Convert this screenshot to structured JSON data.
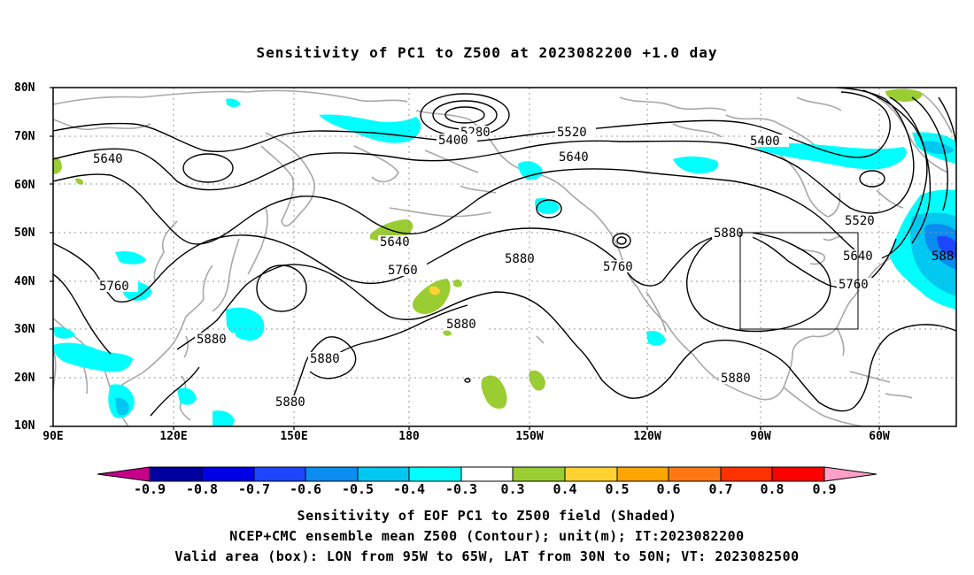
{
  "title": "Sensitivity of PC1 to Z500 at 2023082200 +1.0 day",
  "axes": {
    "lat_labels": [
      "80N",
      "70N",
      "60N",
      "50N",
      "40N",
      "30N",
      "20N",
      "10N"
    ],
    "lon_labels": [
      "90E",
      "120E",
      "150E",
      "180",
      "150W",
      "120W",
      "90W",
      "60W"
    ]
  },
  "contour_labels": [
    "5280",
    "5400",
    "5520",
    "5640",
    "5400",
    "5640",
    "5520",
    "5640",
    "5760",
    "5880",
    "5880",
    "5760",
    "5640",
    "5760",
    "5760",
    "5880",
    "5880",
    "5880",
    "5880",
    "5880",
    "588"
  ],
  "colorbar": {
    "ticks": [
      "-0.9",
      "-0.8",
      "-0.7",
      "-0.6",
      "-0.5",
      "-0.4",
      "-0.3",
      "0.3",
      "0.4",
      "0.5",
      "0.6",
      "0.7",
      "0.8",
      "0.9"
    ],
    "colors": [
      "#c8008c",
      "#0000a0",
      "#0000e6",
      "#1e46ff",
      "#0a8cf0",
      "#00c8f0",
      "#00ffff",
      "#ffffff",
      "#9acd32",
      "#ffd232",
      "#ffa500",
      "#ff7814",
      "#ff3200",
      "#ff0000",
      "#ffa0c8"
    ]
  },
  "caption": {
    "line1": "Sensitivity of EOF PC1 to Z500 field (Shaded)",
    "line2": "NCEP+CMC ensemble mean Z500 (Contour); unit(m); IT:2023082200",
    "line3": "Valid area (box): LON from 95W to 65W, LAT from 30N to 50N; VT: 2023082500"
  }
}
